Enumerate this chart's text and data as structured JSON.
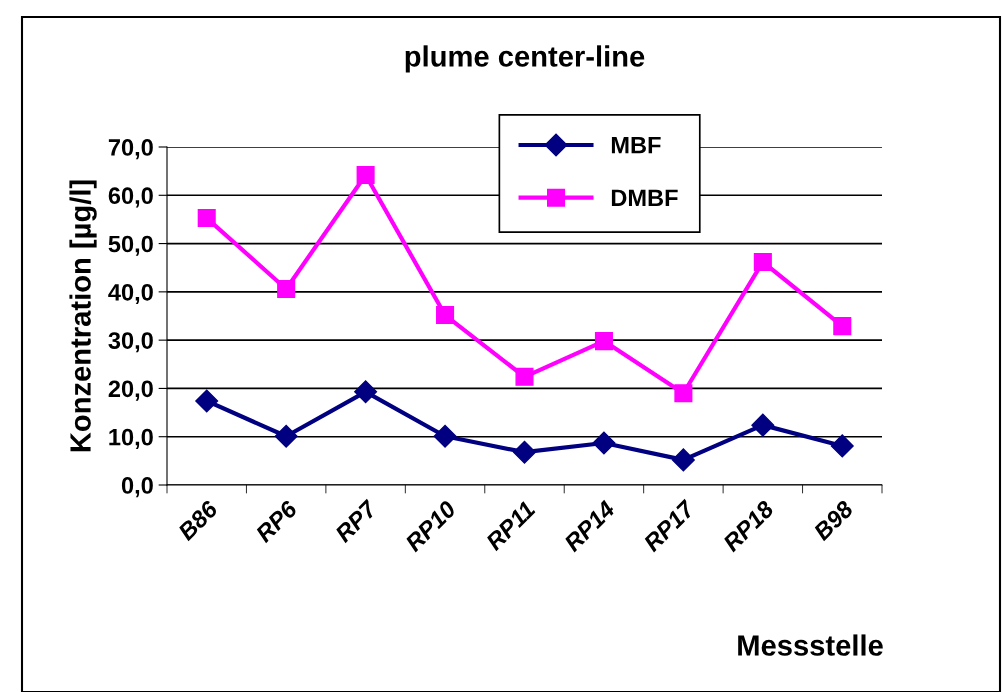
{
  "chart_data": {
    "type": "line",
    "title": "plume center-line",
    "xlabel": "Messstelle",
    "ylabel": "Konzentration [µg/l]",
    "categories": [
      "B86",
      "RP6",
      "RP7",
      "RP10",
      "RP11",
      "RP14",
      "RP17",
      "RP18",
      "B98"
    ],
    "series": [
      {
        "name": "MBF",
        "color": "#000080",
        "marker": "diamond",
        "values": [
          17.4,
          10.1,
          19.3,
          10.1,
          6.8,
          8.7,
          5.2,
          12.4,
          8.1
        ]
      },
      {
        "name": "DMBF",
        "color": "#ff00ff",
        "marker": "square",
        "values": [
          55.3,
          40.6,
          64.2,
          35.2,
          22.4,
          29.8,
          19.0,
          46.2,
          32.9
        ]
      }
    ],
    "ylim": [
      0,
      70
    ],
    "yticks": [
      {
        "value": 0,
        "label": "0,0"
      },
      {
        "value": 10,
        "label": "10,0"
      },
      {
        "value": 20,
        "label": "20,0"
      },
      {
        "value": 30,
        "label": "30,0"
      },
      {
        "value": 40,
        "label": "40,0"
      },
      {
        "value": 50,
        "label": "50,0"
      },
      {
        "value": 60,
        "label": "60,0"
      },
      {
        "value": 70,
        "label": "70,0"
      }
    ],
    "grid": "y",
    "legend": "top",
    "line_style": "solid"
  }
}
